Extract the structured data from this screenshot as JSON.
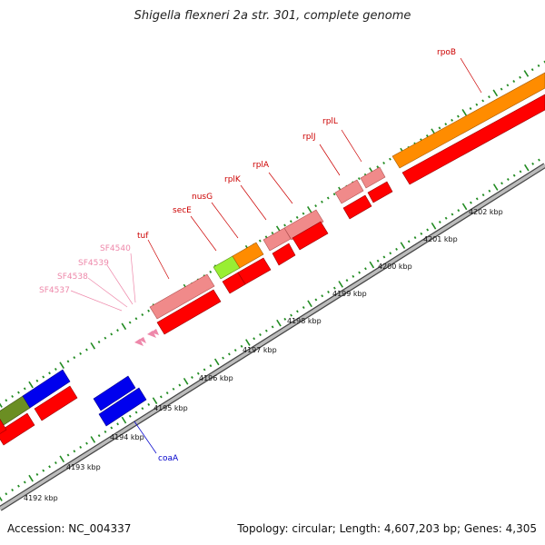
{
  "title": "Shigella flexneri 2a str. 301, complete genome",
  "footer": {
    "accession": "Accession: NC_004337",
    "summary": "Topology: circular; Length: 4,607,203 bp; Genes: 4,305"
  },
  "scale_labels": [
    "4192 kbp",
    "4193 kbp",
    "4194 kbp",
    "4195 kbp",
    "4196 kbp",
    "4197 kbp",
    "4198 kbp",
    "4199 kbp",
    "4200 kbp",
    "4201 kbp",
    "4202 kbp"
  ],
  "genes": [
    {
      "name": "rpoB",
      "color": "#cc0000"
    },
    {
      "name": "rplL",
      "color": "#cc0000"
    },
    {
      "name": "rplJ",
      "color": "#cc0000"
    },
    {
      "name": "rplA",
      "color": "#cc0000"
    },
    {
      "name": "rplK",
      "color": "#cc0000"
    },
    {
      "name": "nusG",
      "color": "#cc0000"
    },
    {
      "name": "secE",
      "color": "#cc0000"
    },
    {
      "name": "tuf",
      "color": "#cc0000"
    },
    {
      "name": "SF4540",
      "color": "#ee88aa"
    },
    {
      "name": "SF4539",
      "color": "#ee88aa"
    },
    {
      "name": "SF4538",
      "color": "#ee88aa"
    },
    {
      "name": "SF4537",
      "color": "#ee88aa"
    },
    {
      "name": "coaA",
      "color": "#0000cc"
    }
  ],
  "colors": {
    "red": "#ff0000",
    "pink": "#f08a8a",
    "orange": "#ff8c00",
    "lime": "#99ee33",
    "olive": "#6b8e23",
    "blue": "#0000ee",
    "tick": "#228b22",
    "backbone": "#999999"
  }
}
